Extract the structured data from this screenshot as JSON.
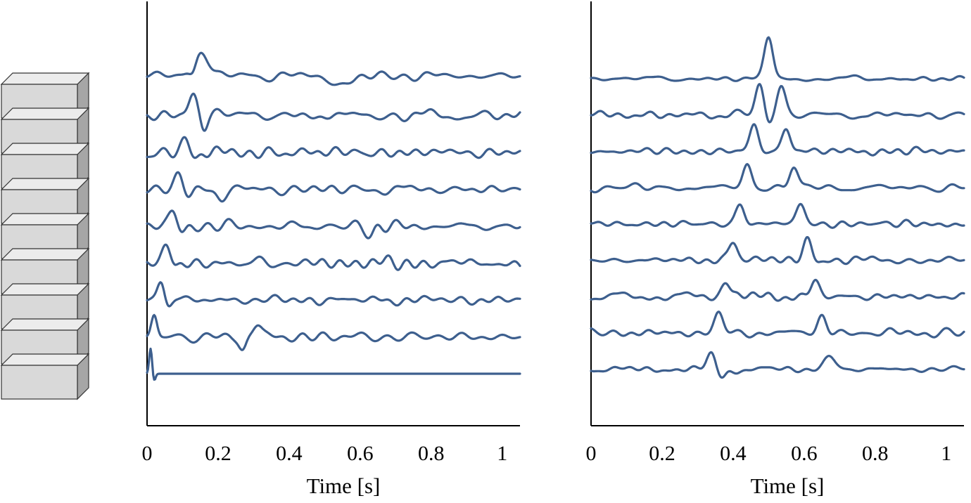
{
  "colors": {
    "trace": "#3d5f8e",
    "axis": "#000000",
    "block_face": "#d9d9d9",
    "block_side": "#a6a6a6",
    "block_top": "#ececec"
  },
  "blocks": {
    "count": 9
  },
  "chart_data": [
    {
      "type": "line",
      "description_free": true,
      "xlabel": "Time [s]",
      "ylabel": "",
      "xlim": [
        0,
        1.05
      ],
      "x_ticks": [
        0,
        0.2,
        0.4,
        0.6,
        0.8,
        1
      ],
      "x_tick_labels": [
        "0",
        "0.2",
        "0.4",
        "0.6",
        "0.8",
        "1"
      ],
      "grid": false,
      "series": [
        {
          "events": [
            [
              0.15,
              1.6,
              0.025
            ],
            [
              0.13,
              -0.8,
              0.01
            ],
            [
              0.55,
              -0.6,
              0.03
            ]
          ],
          "noise": 0.45,
          "baseline": 0.2
        },
        {
          "events": [
            [
              0.13,
              1.4,
              0.012
            ],
            [
              0.16,
              -1.0,
              0.01
            ],
            [
              0.2,
              0.6,
              0.015
            ]
          ],
          "noise": 0.5,
          "baseline": 0.0
        },
        {
          "events": [
            [
              0.11,
              1.1,
              0.012
            ],
            [
              0.14,
              -0.7,
              0.012
            ]
          ],
          "noise": 0.5,
          "baseline": 0.0
        },
        {
          "events": [
            [
              0.09,
              1.2,
              0.012
            ],
            [
              0.12,
              -0.6,
              0.012
            ],
            [
              0.21,
              -0.6,
              0.012
            ]
          ],
          "noise": 0.5,
          "baseline": 0.0
        },
        {
          "events": [
            [
              0.075,
              1.3,
              0.012
            ],
            [
              0.1,
              -0.5,
              0.012
            ],
            [
              0.63,
              -0.6,
              0.012
            ]
          ],
          "noise": 0.5,
          "baseline": 0.0
        },
        {
          "events": [
            [
              0.055,
              1.4,
              0.012
            ],
            [
              0.08,
              -0.5,
              0.012
            ]
          ],
          "noise": 0.5,
          "baseline": 0.0
        },
        {
          "events": [
            [
              0.04,
              1.5,
              0.01
            ],
            [
              0.06,
              -0.4,
              0.01
            ]
          ],
          "noise": 0.5,
          "baseline": 0.0
        },
        {
          "events": [
            [
              0.02,
              1.5,
              0.008
            ],
            [
              0.27,
              -1.0,
              0.01
            ],
            [
              0.31,
              1.0,
              0.012
            ]
          ],
          "noise": 0.45,
          "baseline": 0.0
        },
        {
          "events": [
            [
              0.01,
              1.8,
              0.004
            ],
            [
              0.02,
              -0.5,
              0.004
            ]
          ],
          "noise": 0.0,
          "baseline": 0.0
        }
      ]
    },
    {
      "type": "line",
      "xlabel": "Time [s]",
      "ylabel": "",
      "xlim": [
        0,
        1.05
      ],
      "x_ticks": [
        0,
        0.2,
        0.4,
        0.6,
        0.8,
        1
      ],
      "x_tick_labels": [
        "0",
        "0.2",
        "0.4",
        "0.6",
        "0.8",
        "1"
      ],
      "grid": false,
      "series": [
        {
          "events": [
            [
              0.5,
              2.9,
              0.012
            ]
          ],
          "noise": 0.3,
          "baseline": 0.0
        },
        {
          "events": [
            [
              0.475,
              2.3,
              0.012
            ],
            [
              0.5,
              -0.6,
              0.01
            ],
            [
              0.535,
              2.0,
              0.012
            ]
          ],
          "noise": 0.35,
          "baseline": 0.0
        },
        {
          "events": [
            [
              0.46,
              1.8,
              0.012
            ],
            [
              0.55,
              1.7,
              0.012
            ]
          ],
          "noise": 0.35,
          "baseline": 0.0
        },
        {
          "events": [
            [
              0.44,
              1.6,
              0.012
            ],
            [
              0.57,
              1.5,
              0.012
            ]
          ],
          "noise": 0.35,
          "baseline": 0.0
        },
        {
          "events": [
            [
              0.42,
              1.4,
              0.012
            ],
            [
              0.59,
              1.4,
              0.012
            ]
          ],
          "noise": 0.35,
          "baseline": 0.0
        },
        {
          "events": [
            [
              0.4,
              1.5,
              0.012
            ],
            [
              0.61,
              1.5,
              0.012
            ]
          ],
          "noise": 0.4,
          "baseline": 0.0
        },
        {
          "events": [
            [
              0.38,
              1.3,
              0.012
            ],
            [
              0.63,
              1.1,
              0.012
            ]
          ],
          "noise": 0.4,
          "baseline": 0.0
        },
        {
          "events": [
            [
              0.36,
              1.3,
              0.012
            ],
            [
              0.65,
              1.2,
              0.012
            ]
          ],
          "noise": 0.4,
          "baseline": 0.0
        },
        {
          "events": [
            [
              0.34,
              1.0,
              0.012
            ],
            [
              0.37,
              -0.6,
              0.012
            ],
            [
              0.67,
              0.9,
              0.015
            ]
          ],
          "noise": 0.35,
          "baseline": 0.0
        }
      ]
    }
  ]
}
